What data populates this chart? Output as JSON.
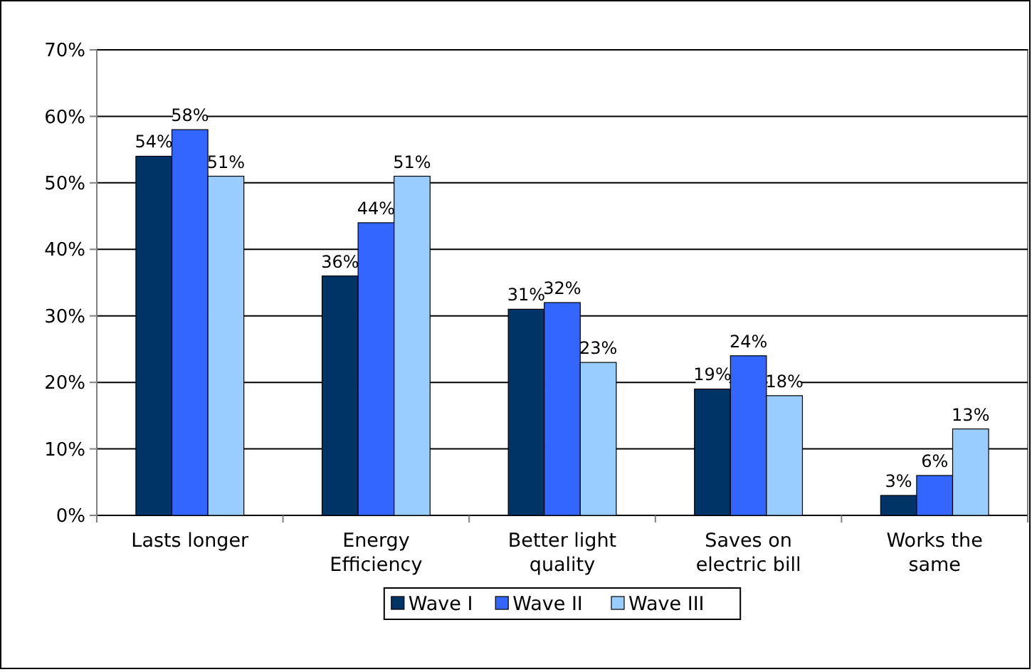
{
  "chart_data": {
    "type": "bar",
    "categories": [
      "Lasts longer",
      "Energy Efficiency",
      "Better light quality",
      "Saves on electric bill",
      "Works the same"
    ],
    "series": [
      {
        "name": "Wave I",
        "color": "#003366",
        "values": [
          54,
          36,
          31,
          19,
          3
        ],
        "value_labels": [
          "54%",
          "36%",
          "31%",
          "19%",
          "3%"
        ]
      },
      {
        "name": "Wave II",
        "color": "#3366ff",
        "values": [
          58,
          44,
          32,
          24,
          6
        ],
        "value_labels": [
          "58%",
          "44%",
          "32%",
          "24%",
          "6%"
        ]
      },
      {
        "name": "Wave III",
        "color": "#99ccff",
        "values": [
          51,
          51,
          23,
          18,
          13
        ],
        "value_labels": [
          "51%",
          "51%",
          "23%",
          "18%",
          "13%"
        ]
      }
    ],
    "ylim": [
      0,
      70
    ],
    "yticks": [
      {
        "value": 0,
        "label": "0%"
      },
      {
        "value": 10,
        "label": "10%"
      },
      {
        "value": 20,
        "label": "20%"
      },
      {
        "value": 30,
        "label": "30%"
      },
      {
        "value": 40,
        "label": "40%"
      },
      {
        "value": 50,
        "label": "50%"
      },
      {
        "value": 60,
        "label": "60%"
      },
      {
        "value": 70,
        "label": "70%"
      }
    ],
    "grid": "y",
    "legend": "bottom"
  }
}
